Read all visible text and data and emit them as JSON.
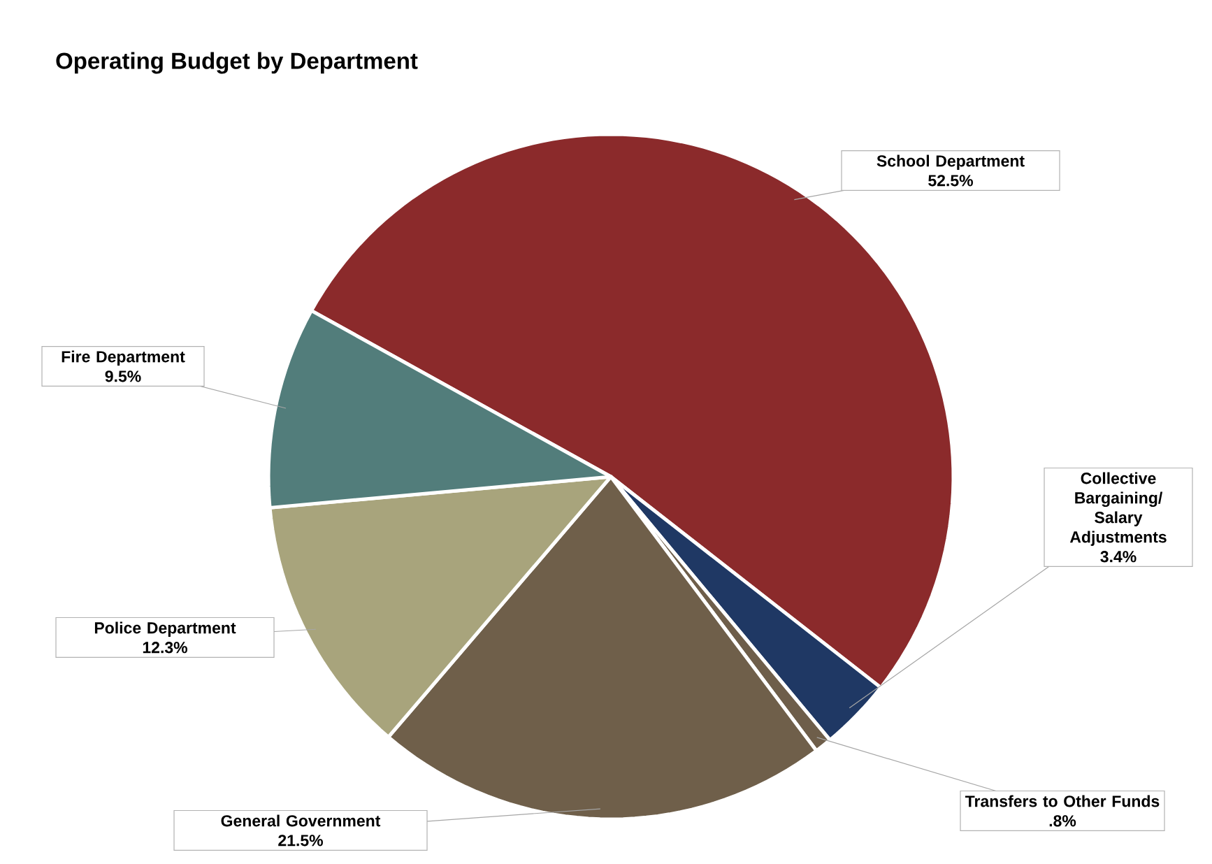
{
  "chart_data": {
    "type": "pie",
    "title": "Operating Budget by Department",
    "categories": [
      "School Department",
      "Collective Bargaining/ Salary Adjustments",
      "Transfers to Other Funds",
      "General Government",
      "Police Department",
      "Fire Department"
    ],
    "values": [
      52.5,
      3.4,
      0.8,
      21.5,
      12.3,
      9.5
    ],
    "value_labels": [
      "52.5%",
      "3.4%",
      ".8%",
      "21.5%",
      "12.3%",
      "9.5%"
    ],
    "colors": [
      "#8b2a2b",
      "#1f3864",
      "#6e5e4a",
      "#6f5f4a",
      "#a8a47c",
      "#527d7b"
    ]
  }
}
